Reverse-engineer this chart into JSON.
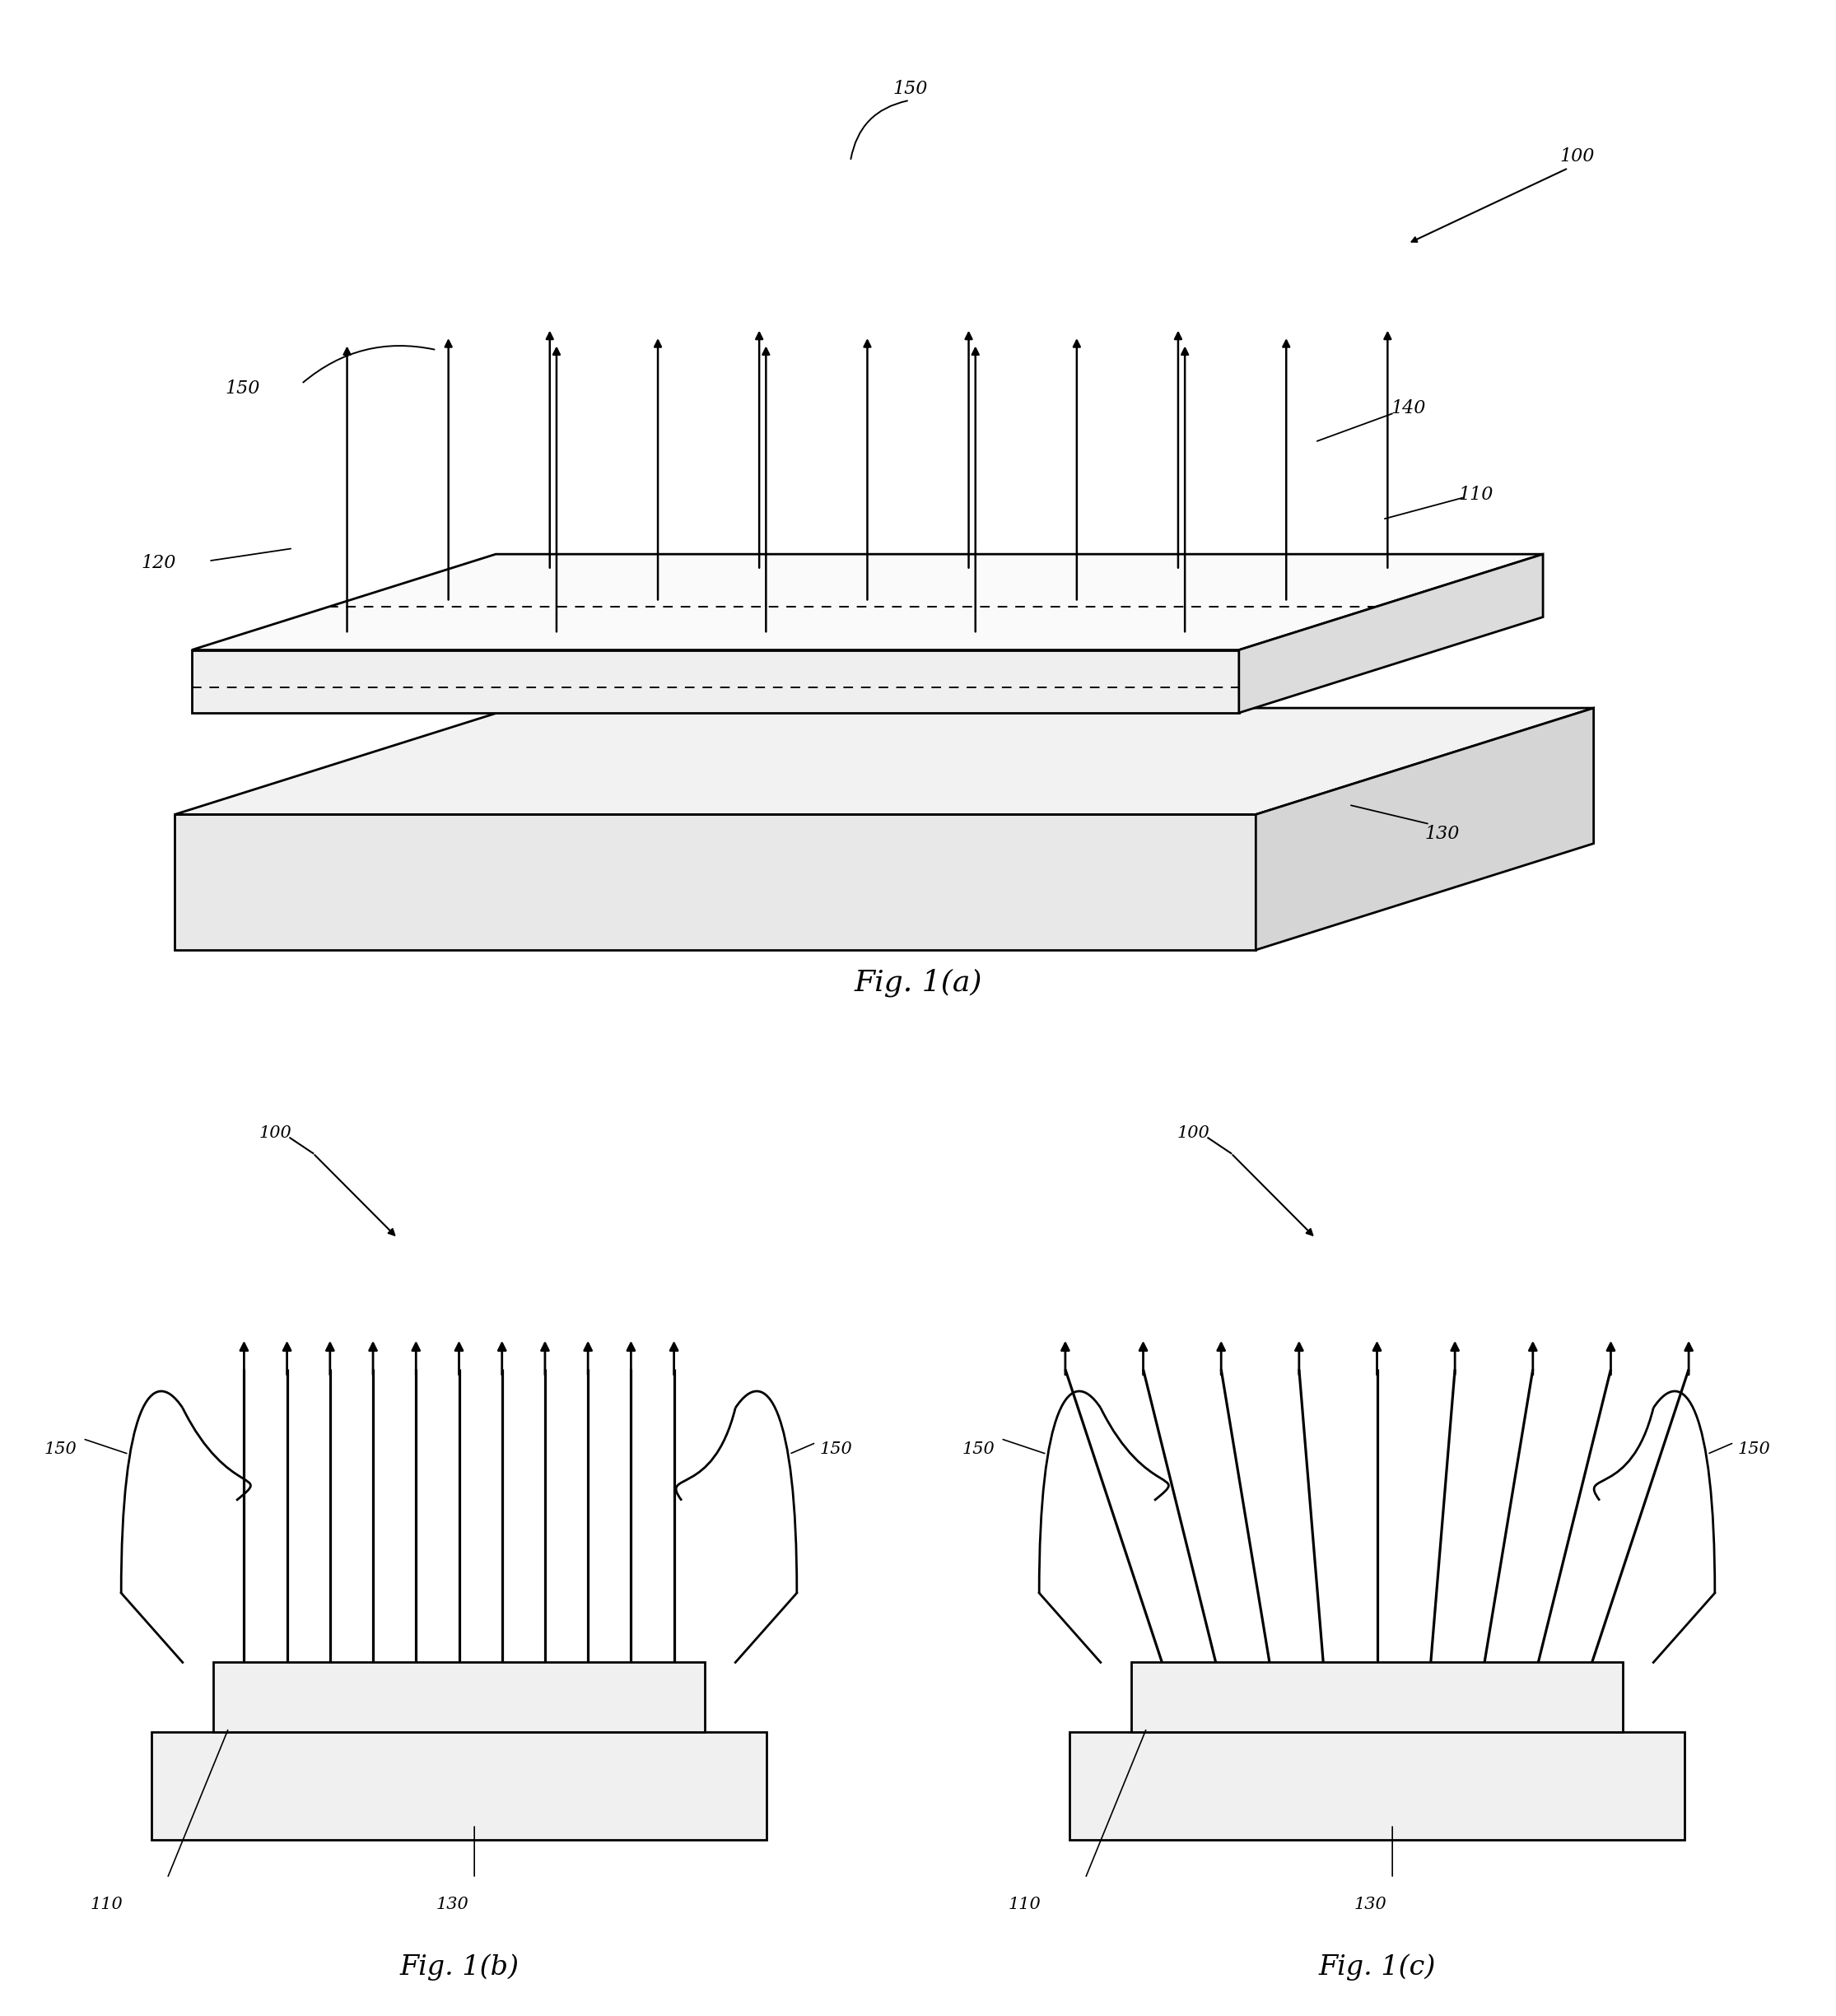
{
  "bg_color": "#ffffff",
  "line_color": "#000000",
  "fig_width": 22.3,
  "fig_height": 24.49,
  "fig1a_caption": "Fig. 1(a)",
  "fig1b_caption": "Fig. 1(b)",
  "fig1c_caption": "Fig. 1(c)",
  "label_100": "100",
  "label_110": "110",
  "label_120": "120",
  "label_130": "130",
  "label_140": "140",
  "label_150": "150",
  "lw_main": 2.0,
  "lw_thin": 1.5,
  "fontsize_label": 16,
  "fontsize_caption": 26
}
